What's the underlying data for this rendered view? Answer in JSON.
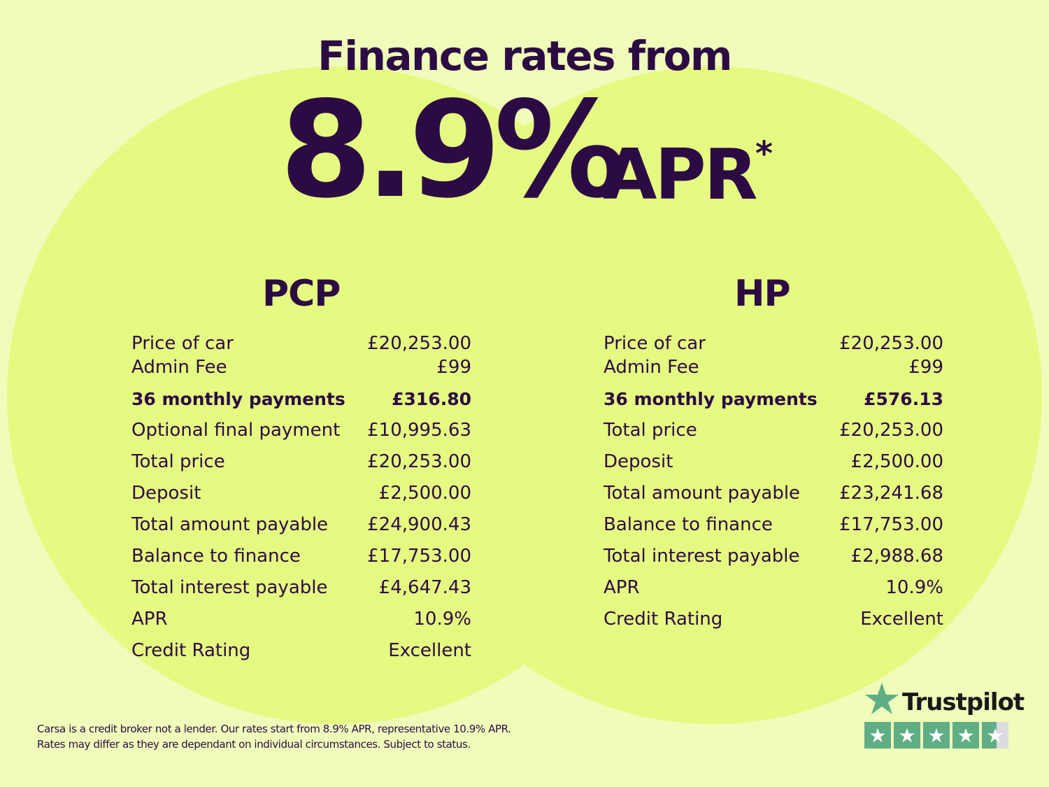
{
  "header": {
    "title": "Finance rates from",
    "rate": "8.9%",
    "rate_suffix": "APR",
    "asterisk": "*"
  },
  "colors": {
    "background": "#effcba",
    "circle": "#e5fa80",
    "text": "#2c0b45",
    "trustpilot_green": "#5fae86"
  },
  "pcp": {
    "heading": "PCP",
    "rows": [
      {
        "label": "Price of car",
        "value": "£20,253.00"
      },
      {
        "label": "Admin Fee",
        "value": "£99"
      },
      {
        "label": "36 monthly payments",
        "value": "£316.80",
        "bold": true
      },
      {
        "label": "Optional final payment",
        "value": "£10,995.63"
      },
      {
        "label": "Total price",
        "value": "£20,253.00"
      },
      {
        "label": "Deposit",
        "value": "£2,500.00"
      },
      {
        "label": "Total amount payable",
        "value": "£24,900.43"
      },
      {
        "label": "Balance to finance",
        "value": "£17,753.00"
      },
      {
        "label": "Total interest payable",
        "value": "£4,647.43"
      },
      {
        "label": "APR",
        "value": "10.9%"
      },
      {
        "label": "Credit Rating",
        "value": "Excellent"
      }
    ]
  },
  "hp": {
    "heading": "HP",
    "rows": [
      {
        "label": "Price of car",
        "value": "£20,253.00"
      },
      {
        "label": "Admin Fee",
        "value": "£99"
      },
      {
        "label": "36 monthly payments",
        "value": "£576.13",
        "bold": true
      },
      {
        "label": "Total price",
        "value": "£20,253.00"
      },
      {
        "label": "Deposit",
        "value": "£2,500.00"
      },
      {
        "label": "Total amount payable",
        "value": "£23,241.68"
      },
      {
        "label": "Balance to finance",
        "value": "£17,753.00"
      },
      {
        "label": "Total interest payable",
        "value": "£2,988.68"
      },
      {
        "label": "APR",
        "value": "10.9%"
      },
      {
        "label": "Credit Rating",
        "value": "Excellent"
      }
    ]
  },
  "disclaimer": {
    "line1": "Carsa is a credit broker not a lender. Our rates start from 8.9% APR, representative 10.9% APR.",
    "line2": "Rates may differ as they are dependant on individual circumstances. Subject to status."
  },
  "trustpilot": {
    "name": "Trustpilot",
    "logo_icon": "star-icon",
    "rating_stars": 4.5,
    "max_stars": 5
  }
}
